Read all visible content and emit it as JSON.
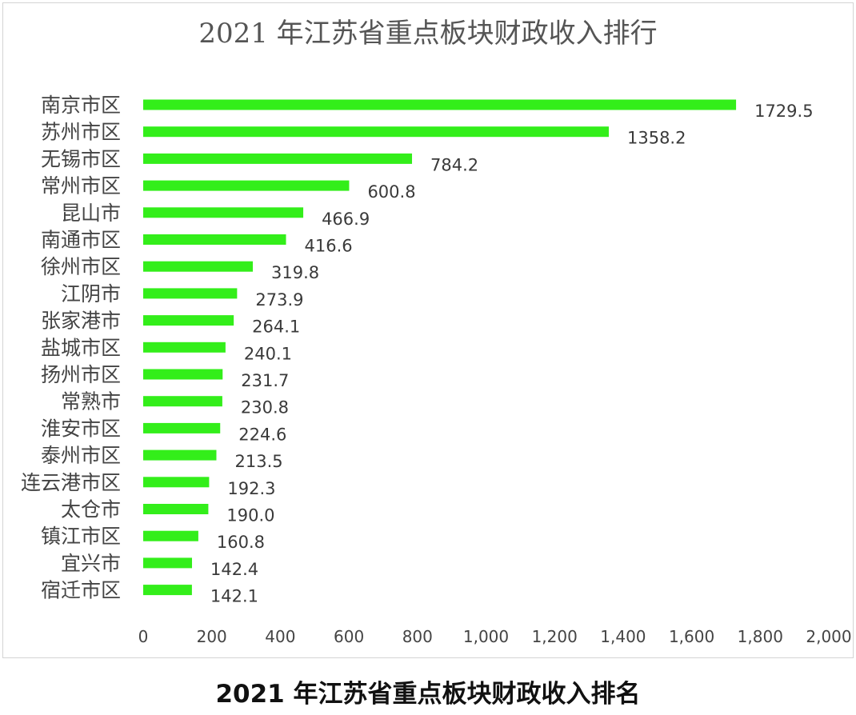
{
  "caption": "2021 年江苏省重点板块财政收入排名",
  "chart_data": {
    "type": "bar",
    "orientation": "horizontal",
    "title": "2021 年江苏省重点板块财政收入排行",
    "xlabel": "",
    "ylabel": "",
    "xlim": [
      0,
      2000
    ],
    "grid": false,
    "legend": "none",
    "bar_color": "#33ee1a",
    "x_ticks": [
      "0",
      "200",
      "400",
      "600",
      "800",
      "1,000",
      "1,200",
      "1,400",
      "1,600",
      "1,800",
      "2,000"
    ],
    "categories": [
      "南京市区",
      "苏州市区",
      "无锡市区",
      "常州市区",
      "昆山市",
      "南通市区",
      "徐州市区",
      "江阴市",
      "张家港市",
      "盐城市区",
      "扬州市区",
      "常熟市",
      "淮安市区",
      "泰州市区",
      "连云港市区",
      "太仓市",
      "镇江市区",
      "宜兴市",
      "宿迁市区"
    ],
    "values": [
      1729.5,
      1358.2,
      784.2,
      600.8,
      466.9,
      416.6,
      319.8,
      273.9,
      264.1,
      240.1,
      231.7,
      230.8,
      224.6,
      213.5,
      192.3,
      190.0,
      160.8,
      142.4,
      142.1
    ],
    "value_labels": [
      "1729.5",
      "1358.2",
      "784.2",
      "600.8",
      "466.9",
      "416.6",
      "319.8",
      "273.9",
      "264.1",
      "240.1",
      "231.7",
      "230.8",
      "224.6",
      "213.5",
      "192.3",
      "190.0",
      "160.8",
      "142.4",
      "142.1"
    ]
  }
}
